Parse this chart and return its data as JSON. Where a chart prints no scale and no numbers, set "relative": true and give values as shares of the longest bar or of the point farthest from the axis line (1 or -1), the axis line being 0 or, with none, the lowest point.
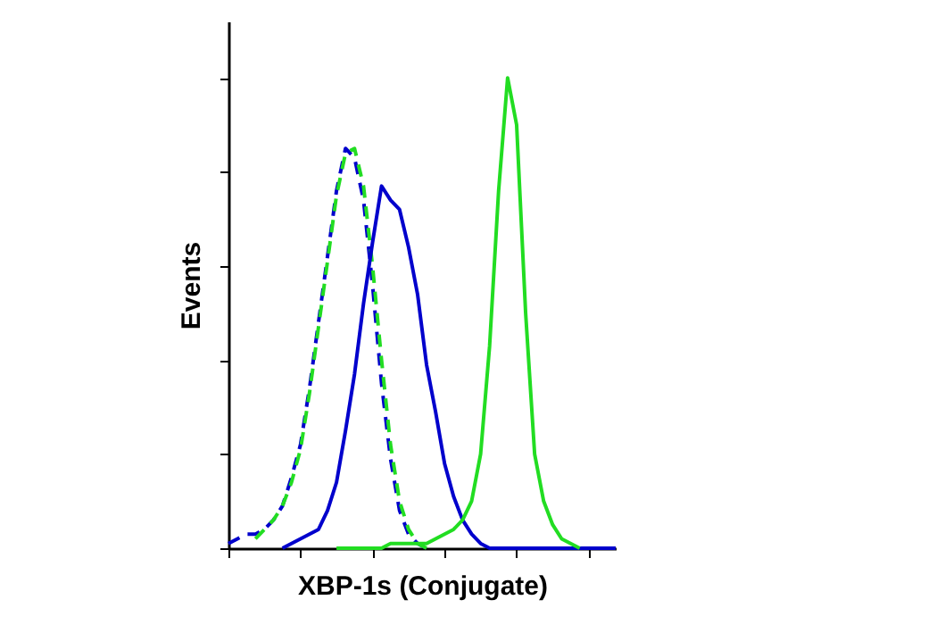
{
  "chart_data": {
    "type": "line",
    "relative": true,
    "xlabel": "XBP-1s (Conjugate)",
    "ylabel": "Events",
    "tick_labels": false,
    "categories": [
      null,
      null,
      null,
      null,
      null,
      null,
      null,
      null,
      null,
      null,
      null,
      null,
      null,
      null,
      null,
      null,
      null,
      null,
      null,
      null,
      null,
      null,
      null,
      null,
      null,
      null,
      null,
      null,
      null,
      null,
      null,
      null,
      null,
      null,
      null,
      null,
      null,
      null,
      null,
      null,
      null,
      null,
      null,
      null
    ],
    "series": [
      {
        "color": "#0000cc",
        "line_style": "dashed",
        "values": [
          0.01,
          0.02,
          0.03,
          0.03,
          0.04,
          0.06,
          0.09,
          0.15,
          0.22,
          0.34,
          0.48,
          0.62,
          0.76,
          0.85,
          0.83,
          0.74,
          0.56,
          0.35,
          0.19,
          0.08,
          0.03,
          0.01,
          0,
          null,
          null,
          null,
          null,
          null,
          null,
          null,
          null,
          null,
          null,
          null,
          null,
          null,
          null,
          null,
          null,
          null,
          null,
          null,
          null,
          null
        ]
      },
      {
        "color": "#22dd22",
        "line_style": "dashed",
        "values": [
          null,
          null,
          null,
          0.02,
          0.04,
          0.06,
          0.09,
          0.14,
          0.21,
          0.33,
          0.47,
          0.61,
          0.75,
          0.84,
          0.85,
          0.77,
          0.6,
          0.4,
          0.22,
          0.1,
          0.04,
          0.01,
          0,
          null,
          null,
          null,
          null,
          null,
          null,
          null,
          null,
          null,
          null,
          null,
          null,
          null,
          null,
          null,
          null,
          null,
          null,
          null,
          null,
          null
        ]
      },
      {
        "color": "#0000cc",
        "line_style": "solid",
        "values": [
          null,
          null,
          null,
          null,
          null,
          null,
          0,
          0.01,
          0.02,
          0.03,
          0.04,
          0.08,
          0.14,
          0.25,
          0.37,
          0.52,
          0.65,
          0.77,
          0.74,
          0.72,
          0.64,
          0.54,
          0.39,
          0.29,
          0.18,
          0.11,
          0.06,
          0.03,
          0.01,
          0,
          0,
          0,
          0,
          0,
          0,
          0,
          0,
          0,
          0,
          0,
          0,
          0,
          0,
          0
        ]
      },
      {
        "color": "#22dd22",
        "line_style": "solid",
        "values": [
          null,
          null,
          null,
          null,
          null,
          null,
          null,
          null,
          null,
          null,
          null,
          null,
          0,
          0,
          0,
          0,
          0,
          0,
          0.01,
          0.01,
          0.01,
          0.01,
          0.01,
          0.02,
          0.03,
          0.04,
          0.06,
          0.1,
          0.2,
          0.43,
          0.76,
          1.0,
          0.9,
          0.5,
          0.2,
          0.1,
          0.05,
          0.02,
          0.01,
          0,
          null,
          null,
          null,
          null
        ]
      }
    ]
  }
}
